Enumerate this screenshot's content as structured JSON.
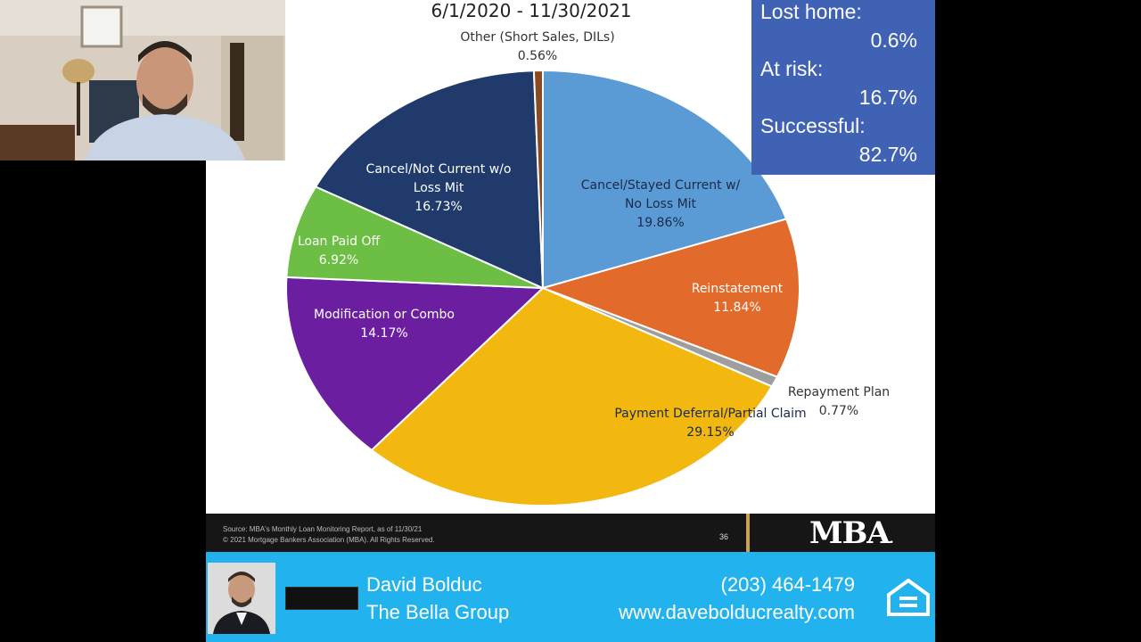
{
  "slide": {
    "title": "6/1/2020 - 11/30/2021"
  },
  "chart_data": {
    "type": "pie",
    "start_angle_deg": 0,
    "slices": [
      {
        "label_lines": [
          "Cancel/Stayed Current w/",
          "No Loss Mit"
        ],
        "pct_label": "19.86%",
        "value": 19.86,
        "color": "#5b9bd5"
      },
      {
        "label_lines": [
          "Reinstatement"
        ],
        "pct_label": "11.84%",
        "value": 11.84,
        "color": "#e26b2b"
      },
      {
        "label_lines": [
          "Repayment Plan"
        ],
        "pct_label": "0.77%",
        "value": 0.77,
        "color": "#9e9e9e"
      },
      {
        "label_lines": [
          "Payment Deferral/Partial Claim"
        ],
        "pct_label": "29.15%",
        "value": 29.15,
        "color": "#f3b80f"
      },
      {
        "label_lines": [
          "Modification or Combo"
        ],
        "pct_label": "14.17%",
        "value": 14.17,
        "color": "#6b1fa0"
      },
      {
        "label_lines": [
          "Loan Paid Off"
        ],
        "pct_label": "6.92%",
        "value": 6.92,
        "color": "#6cbf44"
      },
      {
        "label_lines": [
          "Cancel/Not Current w/o",
          "Loss Mit"
        ],
        "pct_label": "16.73%",
        "value": 16.73,
        "color": "#1f3a6b"
      },
      {
        "label_lines": [
          "Other (Short Sales, DILs)"
        ],
        "pct_label": "0.56%",
        "value": 0.56,
        "color": "#8a4a22"
      }
    ]
  },
  "stats": {
    "lost_home_label": "Lost home:",
    "lost_home_value": "0.6%",
    "at_risk_label": "At risk:",
    "at_risk_value": "16.7%",
    "successful_label": "Successful:",
    "successful_value": "82.7%"
  },
  "footer": {
    "source_line": "Source: MBA's Monthly Loan Monitoring Report, as of 11/30/21",
    "copyright_line": "© 2021 Mortgage Bankers Association (MBA). All Rights Reserved.",
    "page_number": "36",
    "logo_text": "MBA",
    "logo_dot": "."
  },
  "banner": {
    "name": "David Bolduc",
    "company": "The Bella Group",
    "phone": "(203) 464-1479",
    "website": "www.davebolducrealty.com",
    "colors": {
      "background": "#22b3ee"
    }
  },
  "icons": {
    "equal_housing": "equal-housing-icon"
  }
}
